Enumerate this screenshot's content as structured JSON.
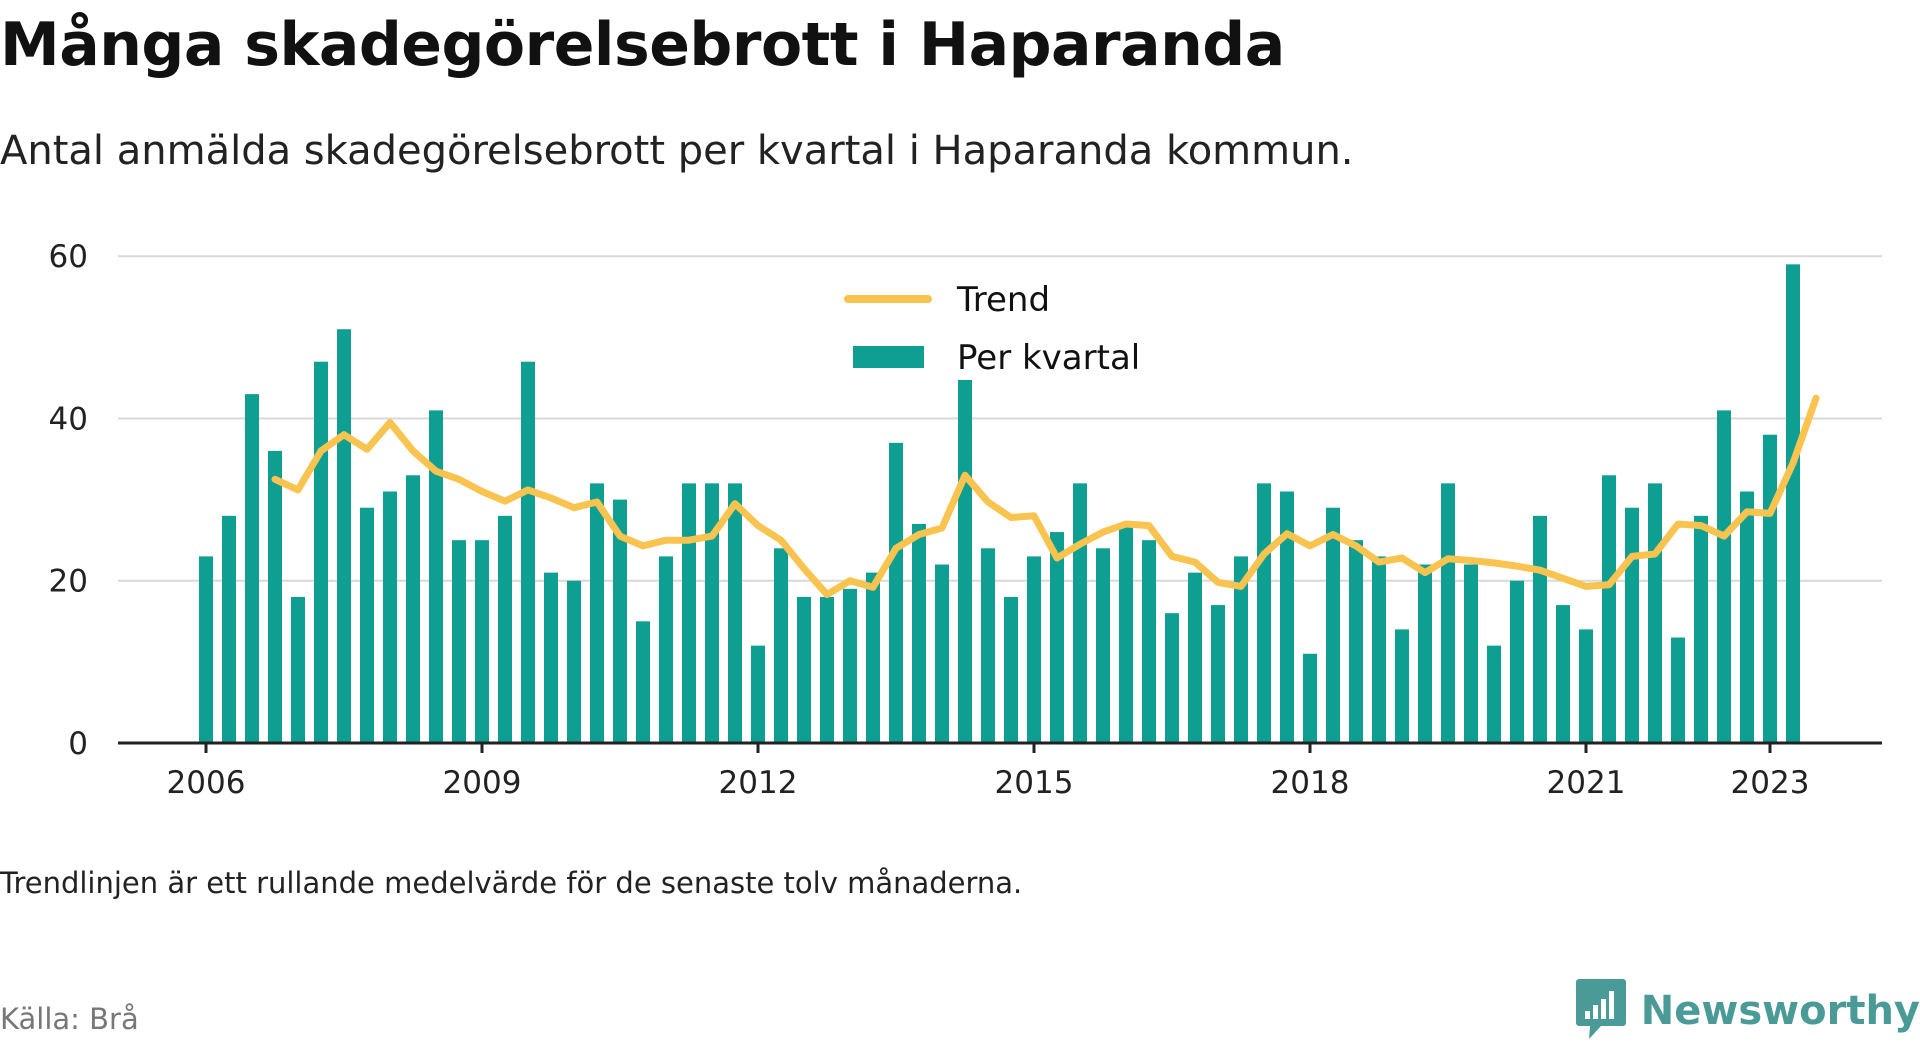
{
  "title": "Många skadegörelsebrott i Haparanda",
  "subtitle": "Antal anmälda skadegörelsebrott per kvartal i Haparanda kommun.",
  "note": "Trendlinjen är ett rullande medelvärde för de senaste tolv månaderna.",
  "source": "Källa: Brå",
  "brand": {
    "name": "Newsworthy",
    "icon": "newsworthy-logo-icon"
  },
  "colors": {
    "bars": "#0e9e92",
    "trend": "#f9c350",
    "grid": "#d9d9d9",
    "axis": "#222222",
    "brand": "#4a9a97"
  },
  "chart_data": {
    "type": "bar",
    "x_ticks": [
      "2006",
      "2009",
      "2012",
      "2015",
      "2018",
      "2021",
      "2023"
    ],
    "y_ticks": [
      0,
      20,
      40,
      60
    ],
    "ylim": [
      0,
      62
    ],
    "legend": {
      "placement": "top-center",
      "entries": [
        {
          "label": "Trend",
          "type": "line"
        },
        {
          "label": "Per kvartal",
          "type": "bar"
        }
      ]
    },
    "series": [
      {
        "name": "Per kvartal",
        "type": "bar",
        "x": [
          "2006 Q1",
          "2006 Q2",
          "2006 Q3",
          "2006 Q4",
          "2007 Q1",
          "2007 Q2",
          "2007 Q3",
          "2007 Q4",
          "2008 Q1",
          "2008 Q2",
          "2008 Q3",
          "2008 Q4",
          "2009 Q1",
          "2009 Q2",
          "2009 Q3",
          "2009 Q4",
          "2010 Q1",
          "2010 Q2",
          "2010 Q3",
          "2010 Q4",
          "2011 Q1",
          "2011 Q2",
          "2011 Q3",
          "2011 Q4",
          "2012 Q1",
          "2012 Q2",
          "2012 Q3",
          "2012 Q4",
          "2013 Q1",
          "2013 Q2",
          "2013 Q3",
          "2013 Q4",
          "2014 Q1",
          "2014 Q2",
          "2014 Q3",
          "2014 Q4",
          "2015 Q1",
          "2015 Q2",
          "2015 Q3",
          "2015 Q4",
          "2016 Q1",
          "2016 Q2",
          "2016 Q3",
          "2016 Q4",
          "2017 Q1",
          "2017 Q2",
          "2017 Q3",
          "2017 Q4",
          "2018 Q1",
          "2018 Q2",
          "2018 Q3",
          "2018 Q4",
          "2019 Q1",
          "2019 Q2",
          "2019 Q3",
          "2019 Q4",
          "2020 Q1",
          "2020 Q2",
          "2020 Q3",
          "2020 Q4",
          "2021 Q1",
          "2021 Q2",
          "2021 Q3",
          "2021 Q4",
          "2022 Q1",
          "2022 Q2",
          "2022 Q3",
          "2022 Q4",
          "2023 Q1",
          "2023 Q2"
        ],
        "values": [
          23,
          28,
          43,
          36,
          18,
          47,
          51,
          29,
          31,
          33,
          41,
          25,
          25,
          28,
          47,
          21,
          20,
          32,
          30,
          15,
          23,
          32,
          32,
          32,
          12,
          24,
          18,
          18,
          19,
          21,
          37,
          27,
          22,
          47,
          24,
          18,
          23,
          26,
          32,
          24,
          27,
          25,
          16,
          21,
          17,
          23,
          32,
          31,
          11,
          29,
          25,
          23,
          14,
          22,
          32,
          22,
          12,
          20,
          28,
          17,
          14,
          33,
          29,
          32,
          13,
          28,
          41,
          31,
          38,
          59
        ]
      },
      {
        "name": "Trend",
        "type": "line",
        "start_index": 3,
        "values": [
          32.5,
          31.2,
          36,
          38,
          36.2,
          39.5,
          36,
          33.5,
          32.5,
          31,
          29.8,
          31.2,
          30.2,
          29,
          29.7,
          25.5,
          24.3,
          25,
          25,
          25.5,
          29.5,
          26.8,
          25,
          21.5,
          18.3,
          20,
          19.2,
          24,
          25.7,
          26.5,
          33,
          29.7,
          27.8,
          28,
          22.8,
          24.5,
          26,
          27,
          26.8,
          23,
          22.3,
          19.8,
          19.3,
          23.3,
          25.8,
          24.3,
          25.7,
          24.3,
          22.3,
          22.8,
          21,
          22.7,
          22.5,
          22.2,
          21.8,
          21.3,
          20.3,
          19.3,
          19.5,
          23,
          23.3,
          27,
          26.8,
          25.5,
          28.5,
          28.3,
          34.5,
          42.5
        ]
      }
    ]
  }
}
